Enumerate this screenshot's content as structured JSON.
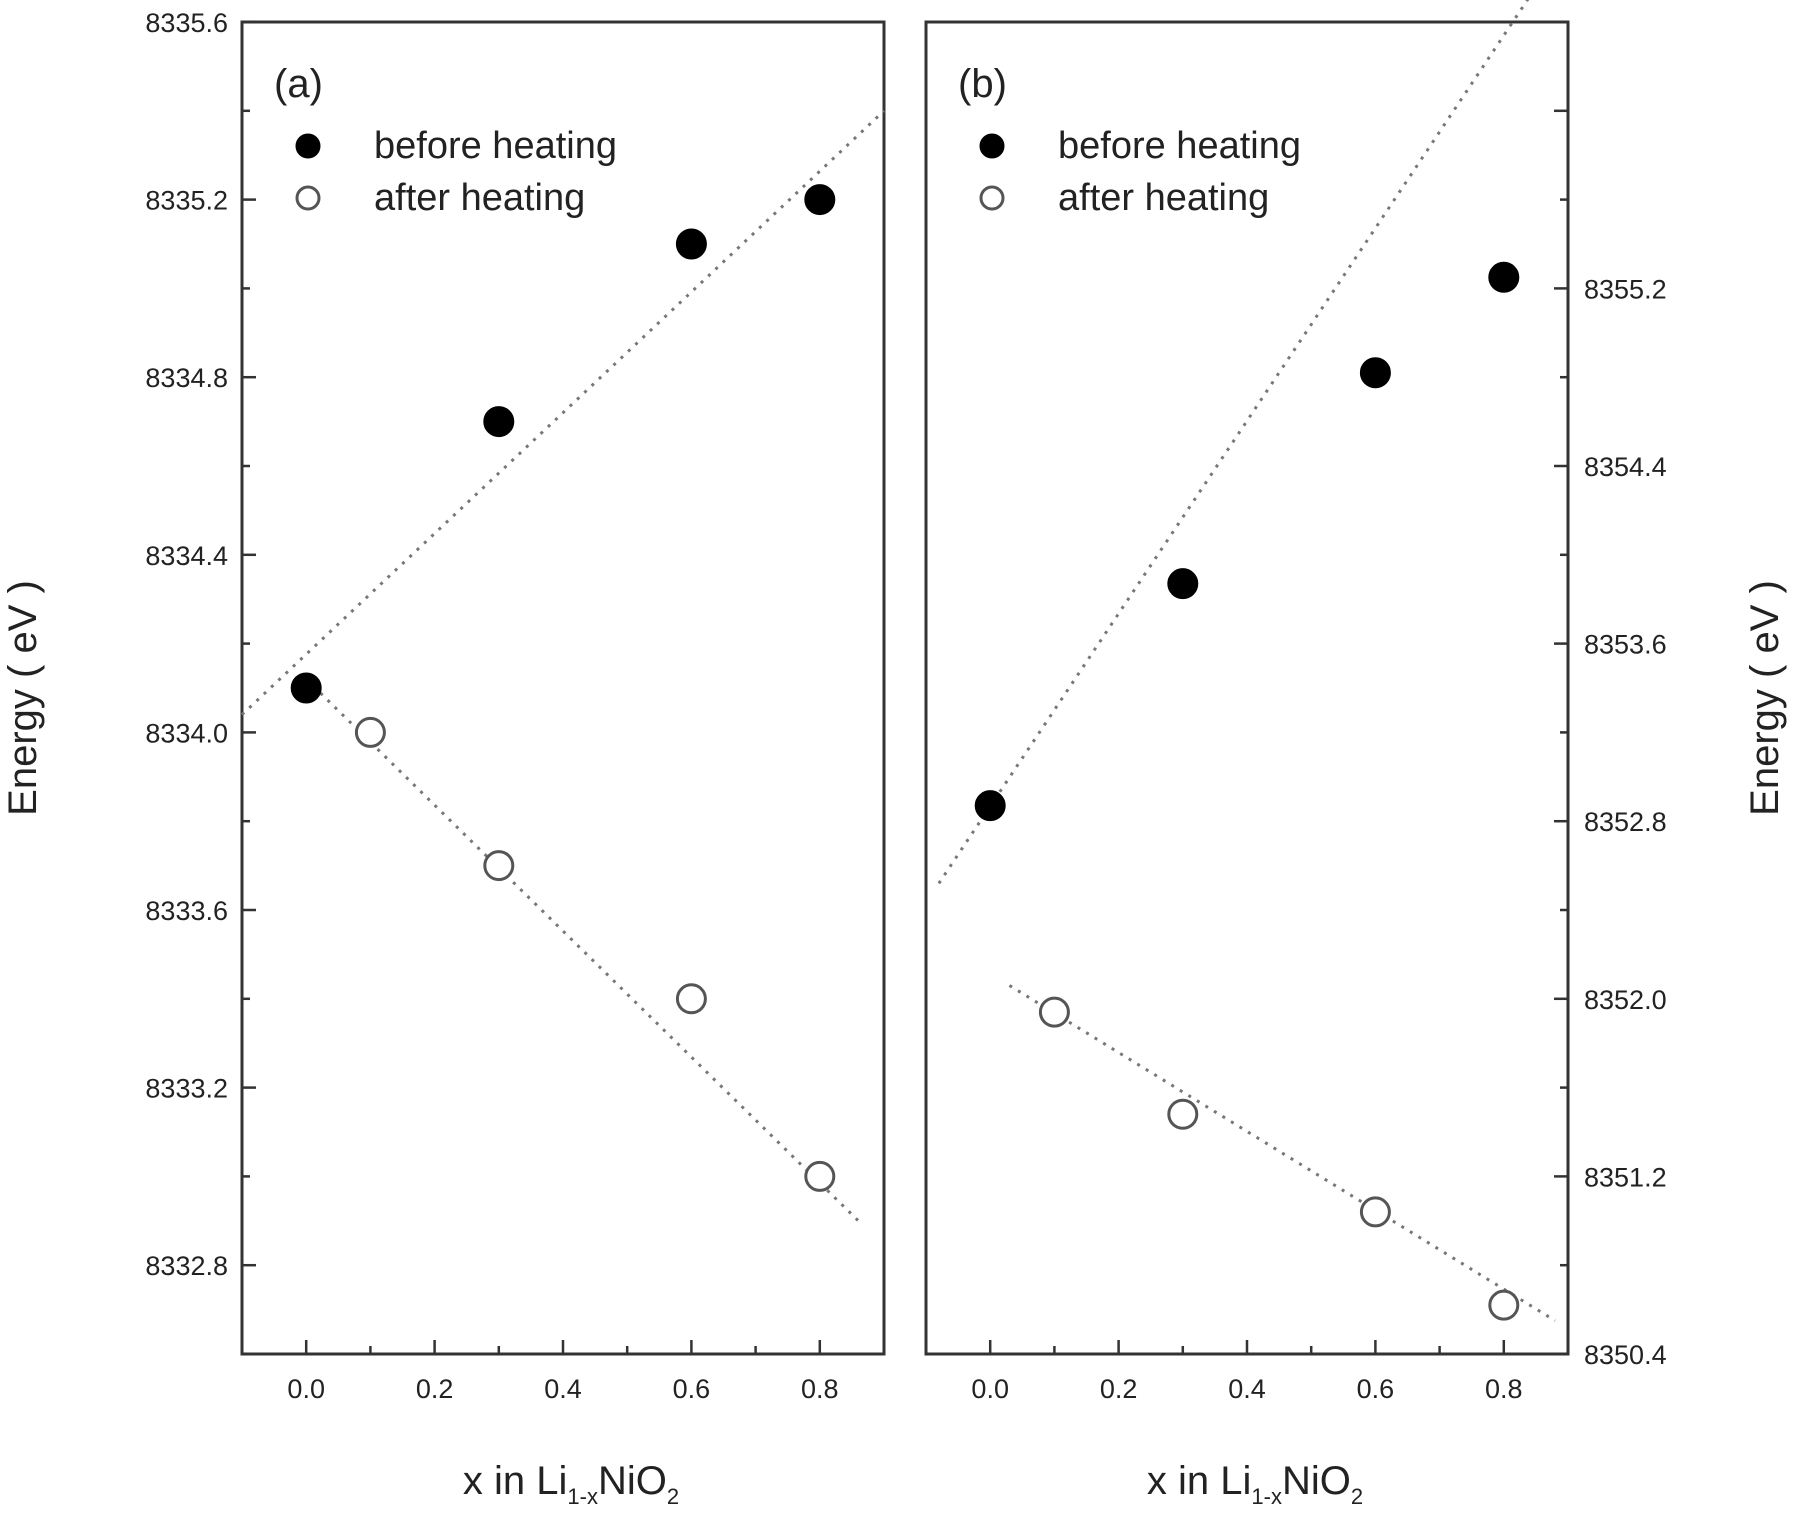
{
  "chart_data": [
    {
      "type": "scatter",
      "panel": "(a)",
      "xlabel": "x in Li",
      "xlabel_sub": "1-x",
      "xlabel_tail": "NiO",
      "xlabel_sub2": "2",
      "ylabel": "Energy ( eV )",
      "xlim": [
        -0.1,
        0.9
      ],
      "ylim": [
        8332.6,
        8335.6
      ],
      "xticks": [
        0.0,
        0.2,
        0.4,
        0.6,
        0.8
      ],
      "xtick_labels": [
        "0.0",
        "0.2",
        "0.4",
        "0.6",
        "0.8"
      ],
      "yticks": [
        8332.8,
        8333.2,
        8333.6,
        8334.0,
        8334.4,
        8334.8,
        8335.2,
        8335.6
      ],
      "ytick_labels": [
        "8332.8",
        "8333.2",
        "8333.6",
        "8334.0",
        "8334.4",
        "8334.8",
        "8335.2",
        "8335.6"
      ],
      "y_axis_side": "left",
      "legend_position": "top-left",
      "series": [
        {
          "name": "before heating",
          "marker": "filled-circle",
          "x": [
            0.0,
            0.3,
            0.6,
            0.8
          ],
          "y": [
            8334.1,
            8334.7,
            8335.1,
            8335.2
          ]
        },
        {
          "name": "after heating",
          "marker": "open-circle",
          "x": [
            0.1,
            0.3,
            0.6,
            0.8
          ],
          "y": [
            8334.0,
            8333.7,
            8333.4,
            8333.0
          ]
        }
      ],
      "fit_lines": [
        {
          "series": "before heating",
          "x": [
            -0.1,
            0.9
          ],
          "y": [
            8334.04,
            8335.4
          ]
        },
        {
          "series": "after heating",
          "x": [
            0.0,
            0.86
          ],
          "y": [
            8334.12,
            8332.9
          ]
        }
      ]
    },
    {
      "type": "scatter",
      "panel": "(b)",
      "xlabel": "x in Li",
      "xlabel_sub": "1-x",
      "xlabel_tail": "NiO",
      "xlabel_sub2": "2",
      "ylabel": "Energy ( eV )",
      "xlim": [
        -0.1,
        0.9
      ],
      "ylim": [
        8350.4,
        8356.4
      ],
      "xticks": [
        0.0,
        0.2,
        0.4,
        0.6,
        0.8
      ],
      "xtick_labels": [
        "0.0",
        "0.2",
        "0.4",
        "0.6",
        "0.8"
      ],
      "yticks": [
        8350.4,
        8351.2,
        8352.0,
        8352.8,
        8353.6,
        8354.4,
        8355.2
      ],
      "ytick_labels": [
        "8350.4",
        "8351.2",
        "8352.0",
        "8352.8",
        "8353.6",
        "8354.4",
        "8355.2"
      ],
      "y_axis_side": "right",
      "legend_position": "top-left",
      "series": [
        {
          "name": "before heating",
          "marker": "filled-circle",
          "x": [
            0.0,
            0.3,
            0.6,
            0.8
          ],
          "y": [
            8352.87,
            8353.87,
            8354.82,
            8355.25
          ]
        },
        {
          "name": "after heating",
          "marker": "open-circle",
          "x": [
            0.1,
            0.3,
            0.6,
            0.8
          ],
          "y": [
            8351.94,
            8351.48,
            8351.04,
            8350.62
          ]
        }
      ],
      "fit_lines": [
        {
          "series": "before heating",
          "x": [
            -0.08,
            0.86
          ],
          "y": [
            8352.52,
            8356.6
          ]
        },
        {
          "series": "after heating",
          "x": [
            0.03,
            0.88
          ],
          "y": [
            8352.06,
            8350.55
          ]
        }
      ]
    }
  ]
}
